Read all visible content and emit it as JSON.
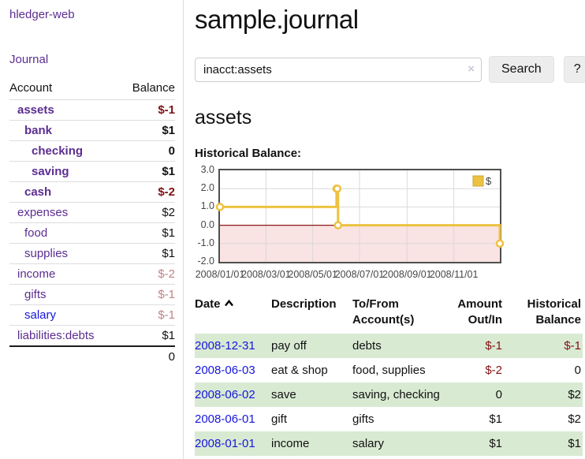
{
  "app": {
    "brand": "hledger-web",
    "nav_journal": "Journal"
  },
  "sidebar": {
    "col_account": "Account",
    "col_balance": "Balance",
    "accounts": [
      {
        "name": "assets",
        "depth": 1,
        "bold": true,
        "balance": "$-1",
        "neg": true
      },
      {
        "name": "bank",
        "depth": 2,
        "bold": true,
        "balance": "$1",
        "neg": false
      },
      {
        "name": "checking",
        "depth": 3,
        "bold": true,
        "balance": "0",
        "neg": false
      },
      {
        "name": "saving",
        "depth": 3,
        "bold": true,
        "balance": "$1",
        "neg": false
      },
      {
        "name": "cash",
        "depth": 2,
        "bold": true,
        "balance": "$-2",
        "neg": true
      },
      {
        "name": "expenses",
        "depth": 1,
        "bold": false,
        "balance": "$2",
        "neg": false
      },
      {
        "name": "food",
        "depth": 2,
        "bold": false,
        "balance": "$1",
        "neg": false
      },
      {
        "name": "supplies",
        "depth": 2,
        "bold": false,
        "balance": "$1",
        "neg": false
      },
      {
        "name": "income",
        "depth": 1,
        "bold": false,
        "balance": "$-2",
        "neg": true
      },
      {
        "name": "gifts",
        "depth": 2,
        "bold": false,
        "balance": "$-1",
        "neg": true
      },
      {
        "name": "salary",
        "depth": 2,
        "bold": false,
        "balance": "$-1",
        "neg": true,
        "unvisited": true
      },
      {
        "name": "liabilities:debts",
        "depth": 1,
        "bold": false,
        "balance": "$1",
        "neg": false
      }
    ],
    "total": "0"
  },
  "header": {
    "title": "sample.journal"
  },
  "search": {
    "value": "inacct:assets",
    "clear_icon": "×",
    "button_label": "Search",
    "help_label": "?"
  },
  "register": {
    "account_title": "assets",
    "chart_label": "Historical Balance:",
    "columns": {
      "date": "Date",
      "description": "Description",
      "accounts": "To/From Account(s)",
      "amount": "Amount Out/In",
      "balance": "Historical Balance"
    },
    "rows": [
      {
        "date": "2008-12-31",
        "description": "pay off",
        "accounts": "debts",
        "amount": "$-1",
        "amount_neg": true,
        "balance": "$-1",
        "balance_neg": true
      },
      {
        "date": "2008-06-03",
        "description": "eat & shop",
        "accounts": "food, supplies",
        "amount": "$-2",
        "amount_neg": true,
        "balance": "0",
        "balance_neg": false
      },
      {
        "date": "2008-06-02",
        "description": "save",
        "accounts": "saving, checking",
        "amount": "0",
        "amount_neg": false,
        "balance": "$2",
        "balance_neg": false
      },
      {
        "date": "2008-06-01",
        "description": "gift",
        "accounts": "gifts",
        "amount": "$1",
        "amount_neg": false,
        "balance": "$2",
        "balance_neg": false
      },
      {
        "date": "2008-01-01",
        "description": "income",
        "accounts": "salary",
        "amount": "$1",
        "amount_neg": false,
        "balance": "$1",
        "balance_neg": false
      }
    ]
  },
  "chart_data": {
    "type": "line",
    "title": "Historical Balance",
    "step": true,
    "x_start": "2008-01-01",
    "x_end": "2008-12-31",
    "points": [
      [
        "2008-01-01",
        1
      ],
      [
        "2008-06-01",
        2
      ],
      [
        "2008-06-02",
        2
      ],
      [
        "2008-06-03",
        0
      ],
      [
        "2008-12-31",
        -1
      ]
    ],
    "xticks": [
      "2008/01/01",
      "2008/03/01",
      "2008/05/01",
      "2008/07/01",
      "2008/09/01",
      "2008/11/01"
    ],
    "yticks": [
      3.0,
      2.0,
      1.0,
      0.0,
      -1.0,
      -2.0
    ],
    "ylim": [
      -2,
      3
    ],
    "legend": [
      {
        "label": "$",
        "color": "#EDC240"
      }
    ],
    "series_color": "#EDC240",
    "negative_region_color": "#fae3e3",
    "zero_line_color": "#8b1a1a",
    "grid": true,
    "legend_position": "top-right"
  }
}
